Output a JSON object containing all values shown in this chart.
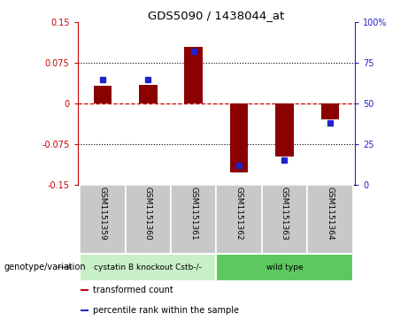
{
  "title": "GDS5090 / 1438044_at",
  "samples": [
    "GSM1151359",
    "GSM1151360",
    "GSM1151361",
    "GSM1151362",
    "GSM1151363",
    "GSM1151364"
  ],
  "transformed_counts": [
    0.033,
    0.035,
    0.105,
    -0.128,
    -0.098,
    -0.03
  ],
  "percentile_ranks": [
    65,
    65,
    82,
    12,
    15,
    38
  ],
  "ylim_left": [
    -0.15,
    0.15
  ],
  "ylim_right": [
    0,
    100
  ],
  "yticks_left": [
    -0.15,
    -0.075,
    0,
    0.075,
    0.15
  ],
  "yticks_right": [
    0,
    25,
    50,
    75,
    100
  ],
  "ytick_labels_left": [
    "-0.15",
    "-0.075",
    "0",
    "0.075",
    "0.15"
  ],
  "ytick_labels_right": [
    "0",
    "25",
    "50",
    "75",
    "100%"
  ],
  "bar_color": "#8B0000",
  "dot_color": "#2222CC",
  "groups": [
    {
      "label": "cystatin B knockout Cstb-/-",
      "samples": [
        0,
        1,
        2
      ],
      "color": "#C8F0C8"
    },
    {
      "label": "wild type",
      "samples": [
        3,
        4,
        5
      ],
      "color": "#5DC85D"
    }
  ],
  "group_row_label": "genotype/variation",
  "legend_items": [
    {
      "color": "#CC0000",
      "label": "transformed count"
    },
    {
      "color": "#2222CC",
      "label": "percentile rank within the sample"
    }
  ],
  "hline_color": "#CC0000",
  "dotted_line_color": "#000000",
  "sample_bg_color": "#C8C8C8",
  "sample_border_color": "#AAAAAA"
}
